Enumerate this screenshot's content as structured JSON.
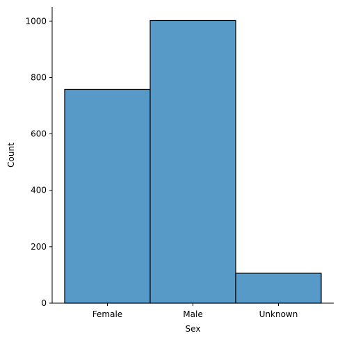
{
  "chart_data": {
    "type": "bar",
    "categories": [
      "Female",
      "Male",
      "Unknown"
    ],
    "values": [
      758,
      1002,
      106
    ],
    "xlabel": "Sex",
    "ylabel": "Count",
    "ylim": [
      0,
      1050
    ],
    "yticks": [
      0,
      200,
      400,
      600,
      800,
      1000
    ],
    "bar_color": "#5799c7",
    "edge_color": "#000000",
    "grid": false,
    "spines": [
      "left",
      "bottom"
    ]
  }
}
